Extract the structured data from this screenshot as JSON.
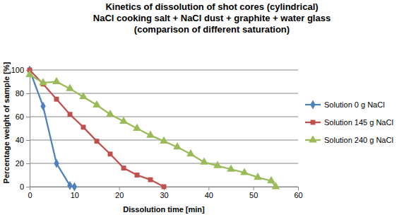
{
  "chart_data": {
    "type": "line",
    "title": [
      "Kinetics of dissolution of shot cores (cylindrical)",
      "NaCl cooking salt + NaCl dust + graphite + water glass",
      "(comparison of different saturation)"
    ],
    "x_label": "Dissolution time [min]",
    "y_label": "Percentage weight of sample [%]",
    "xlim": [
      0,
      60
    ],
    "xticks": [
      0,
      10,
      20,
      30,
      40,
      50,
      60
    ],
    "ylim": [
      0,
      100
    ],
    "yticks": [
      0,
      20,
      40,
      60,
      80,
      100
    ],
    "grid": "y",
    "legend": "right",
    "series": [
      {
        "name": "Solution 0 g NaCl",
        "color": "#4f81bd",
        "marker": "diamond",
        "line_style": "solid",
        "x": [
          0,
          3,
          6,
          9,
          10
        ],
        "values": [
          100,
          69,
          20,
          1,
          0
        ]
      },
      {
        "name": "Solution 145 g NaCl",
        "color": "#c0504d",
        "marker": "square",
        "line_style": "solid",
        "x": [
          0,
          3,
          6,
          9,
          12,
          15,
          18,
          21,
          24,
          27,
          30
        ],
        "values": [
          100,
          88,
          75,
          62,
          51,
          39,
          28,
          16,
          10,
          6,
          0
        ]
      },
      {
        "name": "Solution 240 g NaCl",
        "color": "#9bbb59",
        "marker": "triangle",
        "line_style": "solid",
        "x": [
          0,
          3,
          6,
          9,
          12,
          15,
          18,
          21,
          24,
          27,
          30,
          33,
          36,
          39,
          42,
          45,
          48,
          51,
          54,
          55
        ],
        "values": [
          96,
          89,
          90,
          84,
          77,
          70,
          62,
          56,
          50,
          44,
          39,
          34,
          28,
          21,
          18,
          15,
          12,
          8,
          5,
          0
        ]
      }
    ]
  }
}
